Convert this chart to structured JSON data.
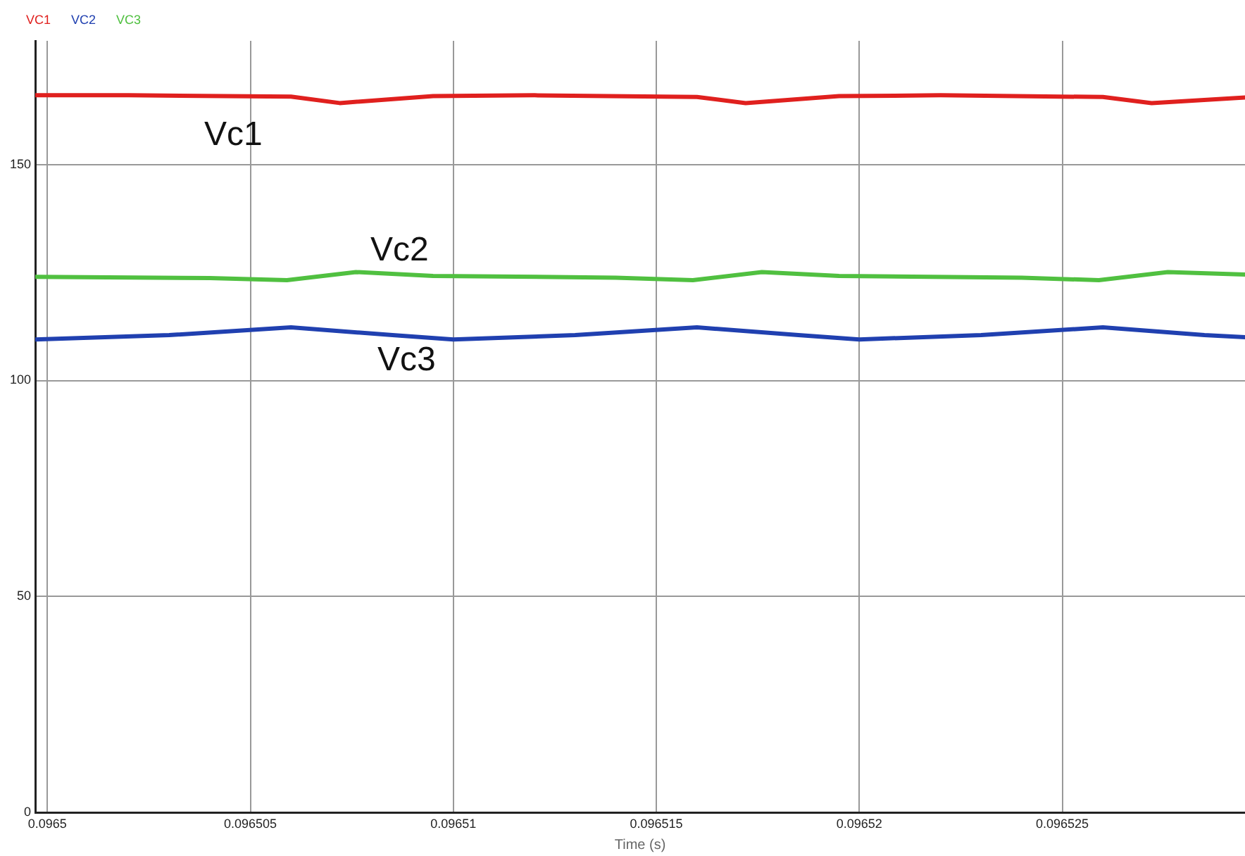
{
  "chart_data": {
    "type": "line",
    "xlabel": "Time (s)",
    "xlim": [
      0.0964997,
      0.0965295
    ],
    "xticks": [
      0.0965,
      0.096505,
      0.09651,
      0.096515,
      0.09652,
      0.096525
    ],
    "ylim": [
      0,
      178.6
    ],
    "yticks": [
      0,
      50,
      100,
      150
    ],
    "grid": true,
    "legend": "top left",
    "marker": "none",
    "line_style": "solid",
    "series": [
      {
        "name": "VC1",
        "color": "#e0201e",
        "x": [
          0.0964997,
          0.096502,
          0.096506,
          0.0965072,
          0.0965095,
          0.096512,
          0.096516,
          0.0965172,
          0.0965195,
          0.096522,
          0.096526,
          0.0965272,
          0.0965295
        ],
        "values": [
          166,
          166,
          165.7,
          164.2,
          165.8,
          166,
          165.6,
          164.2,
          165.8,
          166,
          165.6,
          164.2,
          165.5
        ]
      },
      {
        "name": "VC2",
        "color": "#2040b0",
        "x": [
          0.0964997,
          0.096503,
          0.096506,
          0.0965085,
          0.09651,
          0.096513,
          0.096516,
          0.0965185,
          0.09652,
          0.096523,
          0.096526,
          0.0965285,
          0.0965295
        ],
        "values": [
          109.5,
          110.5,
          112.3,
          110.5,
          109.5,
          110.5,
          112.3,
          110.5,
          109.5,
          110.5,
          112.3,
          110.5,
          110
        ]
      },
      {
        "name": "VC3",
        "color": "#50c040",
        "x": [
          0.0964997,
          0.096504,
          0.0965059,
          0.0965076,
          0.0965095,
          0.096514,
          0.0965159,
          0.0965176,
          0.0965195,
          0.096524,
          0.0965259,
          0.0965276,
          0.0965295
        ],
        "values": [
          124,
          123.7,
          123.2,
          125.1,
          124.2,
          123.8,
          123.2,
          125.1,
          124.2,
          123.8,
          123.2,
          125.1,
          124.5
        ]
      }
    ],
    "annotations": [
      "Vc1",
      "Vc2",
      "Vc3"
    ]
  }
}
